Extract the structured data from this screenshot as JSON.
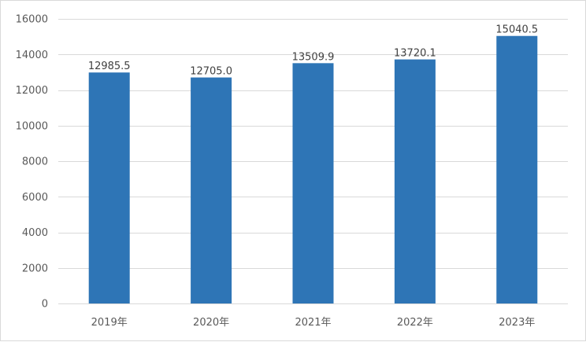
{
  "chart_data": {
    "type": "bar",
    "title": "",
    "xlabel": "",
    "ylabel": "",
    "categories": [
      "2019年",
      "2020年",
      "2021年",
      "2022年",
      "2023年"
    ],
    "values": [
      12985.5,
      12705.0,
      13509.9,
      13720.1,
      15040.5
    ],
    "value_labels": [
      "12985.5",
      "12705.0",
      "13509.9",
      "13720.1",
      "15040.5"
    ],
    "ylim": [
      0,
      16000
    ],
    "yticks": [
      0,
      2000,
      4000,
      6000,
      8000,
      10000,
      12000,
      14000,
      16000
    ],
    "ytick_labels": [
      "0",
      "2000",
      "4000",
      "6000",
      "8000",
      "10000",
      "12000",
      "14000",
      "16000"
    ],
    "grid": true,
    "legend": "none",
    "bar_color": "#2E75B6",
    "grid_color": "#d9d9d9"
  }
}
